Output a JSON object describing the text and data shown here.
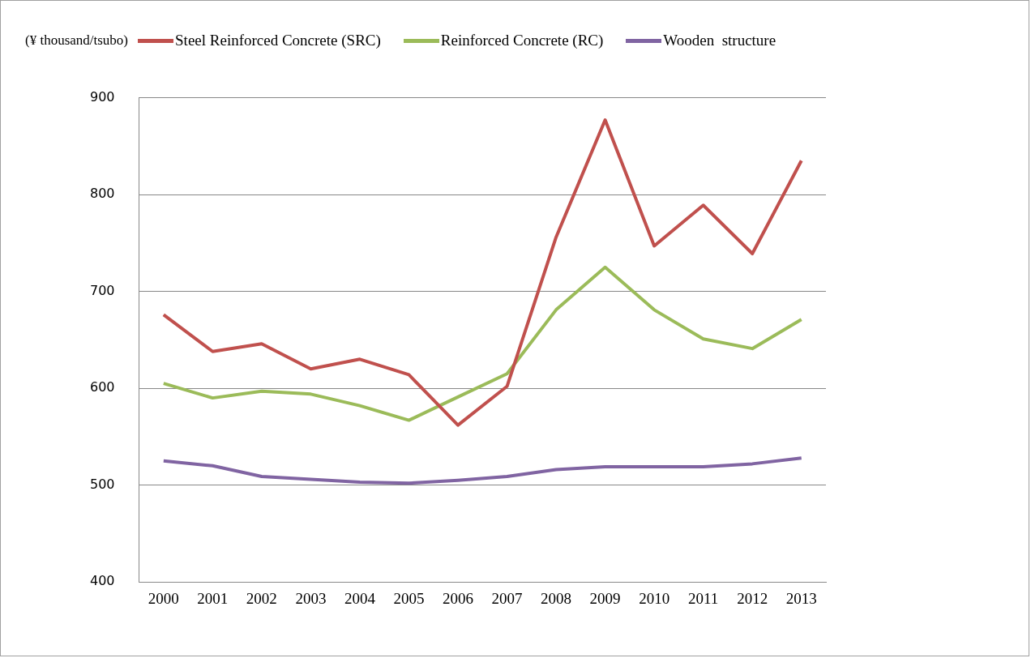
{
  "chart_data": {
    "type": "line",
    "ylabel": "(¥ thousand/tsubo)",
    "categories": [
      "2000",
      "2001",
      "2002",
      "2003",
      "2004",
      "2005",
      "2006",
      "2007",
      "2008",
      "2009",
      "2010",
      "2011",
      "2012",
      "2013"
    ],
    "series": [
      {
        "name": "Steel Reinforced Concrete (SRC)",
        "color": "#c0504d",
        "values": [
          676,
          638,
          646,
          620,
          630,
          614,
          562,
          602,
          756,
          877,
          747,
          789,
          739,
          835
        ]
      },
      {
        "name": "Reinforced Concrete (RC)",
        "color": "#9bbb59",
        "values": [
          605,
          590,
          597,
          594,
          582,
          567,
          591,
          615,
          681,
          725,
          681,
          651,
          641,
          671
        ]
      },
      {
        "name": "Wooden  structure",
        "color": "#8064a2",
        "values": [
          525,
          520,
          509,
          506,
          503,
          502,
          505,
          509,
          516,
          519,
          519,
          519,
          522,
          528
        ]
      }
    ],
    "ylim": [
      400,
      900
    ],
    "yticks": [
      400,
      500,
      600,
      700,
      800,
      900
    ],
    "grid": "y",
    "legend": "top",
    "marker": "none",
    "line_style": "solid"
  }
}
